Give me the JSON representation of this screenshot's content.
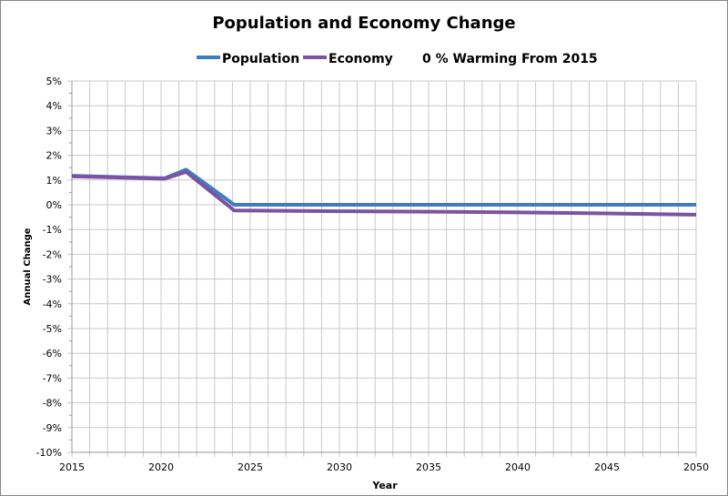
{
  "chart_data": {
    "type": "line",
    "title": "Population and Economy Change",
    "annotation": "0 % Warming From 2015",
    "xlabel": "Year",
    "ylabel": "Annual Change",
    "xlim": [
      2015,
      2050
    ],
    "ylim": [
      -10,
      5
    ],
    "y_unit": "%",
    "x_ticks": [
      2015,
      2020,
      2025,
      2030,
      2035,
      2040,
      2045,
      2050
    ],
    "y_ticks": [
      5,
      4,
      3,
      2,
      1,
      0,
      -1,
      -2,
      -3,
      -4,
      -5,
      -6,
      -7,
      -8,
      -9,
      -10
    ],
    "x_tick_labels": [
      "2015",
      "2020",
      "2025",
      "2030",
      "2035",
      "2040",
      "2045",
      "2050"
    ],
    "y_tick_labels": [
      "5%",
      "4%",
      "3%",
      "2%",
      "1%",
      "0%",
      "-1%",
      "-2%",
      "-3%",
      "-4%",
      "-5%",
      "-6%",
      "-7%",
      "-8%",
      "-9%",
      "-10%"
    ],
    "grid": true,
    "legend": "top",
    "series": [
      {
        "name": "Population",
        "color": "#3f7cc4",
        "x": [
          2015,
          2020.2,
          2021.4,
          2024.1,
          2050
        ],
        "y": [
          1.17,
          1.07,
          1.42,
          0.0,
          0.0
        ]
      },
      {
        "name": "Economy",
        "color": "#7b539f",
        "x": [
          2015,
          2020.2,
          2021.4,
          2024.1,
          2030,
          2035,
          2040,
          2045,
          2050
        ],
        "y": [
          1.15,
          1.05,
          1.33,
          -0.23,
          -0.26,
          -0.28,
          -0.31,
          -0.35,
          -0.4
        ]
      }
    ]
  }
}
